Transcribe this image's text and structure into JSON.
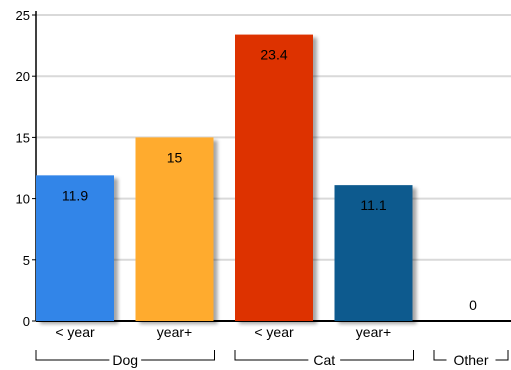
{
  "chart_data": {
    "type": "bar",
    "title": "",
    "xlabel": "",
    "ylabel": "",
    "ylim": [
      0,
      25
    ],
    "yticks": [
      0,
      5,
      10,
      15,
      20,
      25
    ],
    "grid": true,
    "groups": [
      {
        "name": "Dog",
        "categories": [
          "< year",
          "year+"
        ]
      },
      {
        "name": "Cat",
        "categories": [
          "< year",
          "year+"
        ]
      },
      {
        "name": "Other",
        "categories": [
          ""
        ]
      }
    ],
    "bars": [
      {
        "group": "Dog",
        "category": "< year",
        "value": 11.9,
        "label": "11.9",
        "color": "#3385e8"
      },
      {
        "group": "Dog",
        "category": "year+",
        "value": 15,
        "label": "15",
        "color": "#ffab2e"
      },
      {
        "group": "Cat",
        "category": "< year",
        "value": 23.4,
        "label": "23.4",
        "color": "#dd3300"
      },
      {
        "group": "Cat",
        "category": "year+",
        "value": 11.1,
        "label": "11.1",
        "color": "#0b5a8e"
      },
      {
        "group": "Other",
        "category": "",
        "value": 0,
        "label": "0",
        "color": "#888888"
      }
    ]
  }
}
